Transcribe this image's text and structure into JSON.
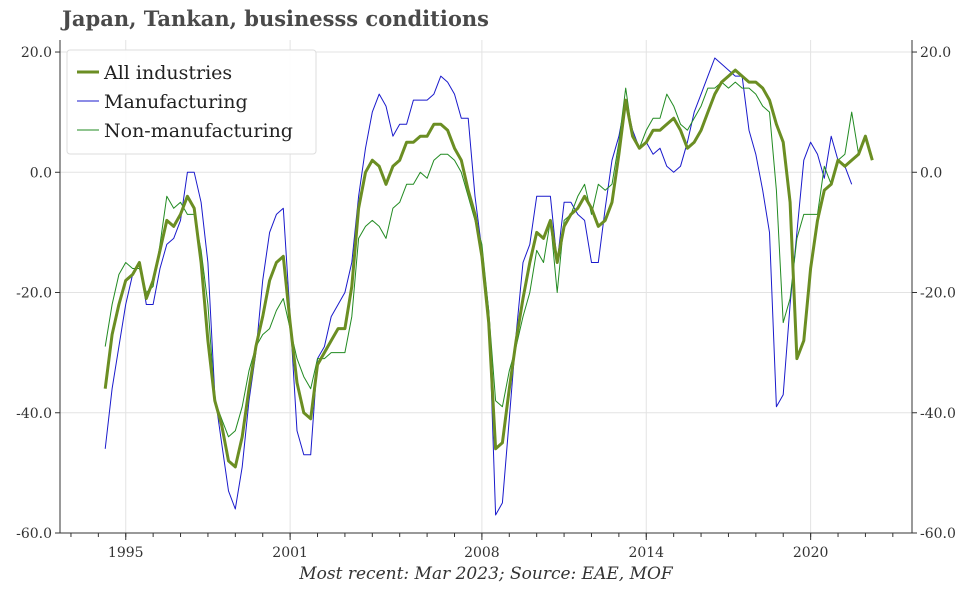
{
  "title": "Japan, Tankan, businesss conditions",
  "footer": "Most recent: Mar 2023; Source: EAE, MOF",
  "chart_data": {
    "type": "line",
    "x_start_year": 1994.25,
    "x_step": 0.25,
    "xlim": [
      1992.6,
      2023.7
    ],
    "ylim": [
      -60,
      22
    ],
    "x_ticks": [
      1995,
      2001,
      2008,
      2014,
      2020
    ],
    "x_tick_labels": [
      "1995",
      "2001",
      "2008",
      "2014",
      "2020"
    ],
    "y_ticks": [
      -60,
      -40,
      -20,
      0,
      20
    ],
    "y_tick_labels": [
      "-60.0",
      "-40.0",
      "-20.0",
      "0.0",
      "20.0"
    ],
    "grid": true,
    "legend_position": "top-left",
    "series": [
      {
        "name": "All industries",
        "color": "#6b8e23",
        "width": 3,
        "values": [
          -36,
          -27,
          -22,
          -18,
          -17,
          -15,
          -21,
          -18,
          -13,
          -8,
          -9,
          -7,
          -4,
          -6,
          -15,
          -28,
          -38,
          -42,
          -48,
          -49,
          -44,
          -36,
          -29,
          -24,
          -18,
          -15,
          -14,
          -25,
          -35,
          -40,
          -41,
          -32,
          -30,
          -28,
          -26,
          -26,
          -19,
          -6,
          0,
          2,
          1,
          -2,
          1,
          2,
          5,
          5,
          6,
          6,
          8,
          8,
          7,
          4,
          2,
          -3,
          -7,
          -14,
          -25,
          -46,
          -45,
          -36,
          -28,
          -21,
          -15,
          -10,
          -11,
          -8,
          -15,
          -9,
          -7,
          -6,
          -4,
          -6,
          -9,
          -8,
          -5,
          3,
          12,
          6,
          4,
          5,
          7,
          7,
          8,
          9,
          7,
          4,
          5,
          7,
          10,
          13,
          15,
          16,
          17,
          16,
          15,
          15,
          14,
          12,
          8,
          5,
          -5,
          -31,
          -28,
          -16,
          -8,
          -3,
          -2,
          2,
          1,
          2,
          3,
          6,
          2
        ]
      },
      {
        "name": "Manufacturing",
        "color": "#1a1acc",
        "width": 1,
        "values": [
          -46,
          -36,
          -29,
          -22,
          -17,
          -15,
          -22,
          -22,
          -16,
          -12,
          -11,
          -8,
          0,
          0,
          -5,
          -15,
          -37,
          -45,
          -53,
          -56,
          -49,
          -38,
          -30,
          -18,
          -10,
          -7,
          -6,
          -24,
          -43,
          -47,
          -47,
          -31,
          -29,
          -24,
          -22,
          -20,
          -15,
          -4,
          4,
          10,
          13,
          11,
          6,
          8,
          8,
          12,
          12,
          12,
          13,
          16,
          15,
          13,
          9,
          9,
          -4,
          -13,
          -23,
          -57,
          -55,
          -41,
          -27,
          -15,
          -12,
          -4,
          -4,
          -4,
          -15,
          -5,
          -5,
          -7,
          -8,
          -15,
          -15,
          -6,
          2,
          6,
          12,
          7,
          4,
          5,
          3,
          4,
          1,
          0,
          1,
          5,
          10,
          13,
          16,
          19,
          18,
          17,
          16,
          16,
          7,
          3,
          -3,
          -10,
          -39,
          -37,
          -22,
          -10,
          2,
          5,
          3,
          -1,
          6,
          2,
          1,
          -2
        ]
      },
      {
        "name": "Non-manufacturing",
        "color": "#228b22",
        "width": 1,
        "values": [
          -29,
          -22,
          -17,
          -15,
          -16,
          -16,
          -20,
          -19,
          -12,
          -4,
          -6,
          -5,
          -7,
          -7,
          -13,
          -22,
          -38,
          -41,
          -44,
          -43,
          -39,
          -33,
          -29,
          -27,
          -26,
          -23,
          -21,
          -26,
          -31,
          -34,
          -36,
          -31,
          -31,
          -30,
          -30,
          -30,
          -24,
          -11,
          -9,
          -8,
          -9,
          -11,
          -6,
          -5,
          -2,
          -2,
          0,
          -1,
          2,
          3,
          3,
          2,
          0,
          -4,
          -8,
          -12,
          -23,
          -38,
          -39,
          -33,
          -29,
          -24,
          -20,
          -13,
          -15,
          -8,
          -20,
          -8,
          -7,
          -4,
          -2,
          -7,
          -2,
          -3,
          -2,
          5,
          14,
          6,
          4,
          7,
          9,
          9,
          13,
          11,
          8,
          7,
          9,
          11,
          14,
          14,
          15,
          14,
          15,
          14,
          14,
          13,
          11,
          10,
          -3,
          -25,
          -21,
          -11,
          -7,
          -7,
          -7,
          1,
          -2,
          2,
          3,
          10,
          3
        ]
      }
    ]
  }
}
